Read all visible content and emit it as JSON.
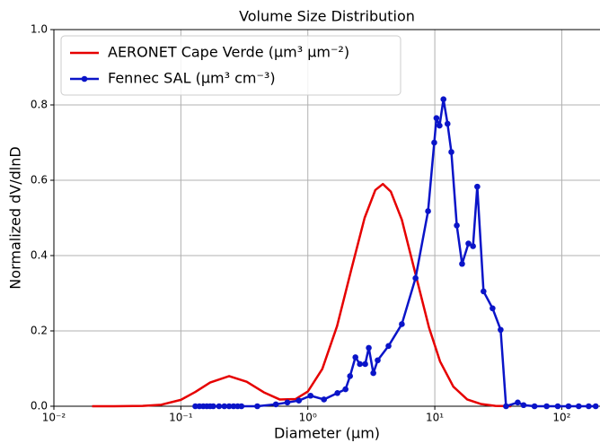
{
  "chart_data": {
    "type": "line",
    "title": "Volume Size Distribution",
    "x_label": "Diameter (µm)",
    "y_label": "Normalized dV/dlnD",
    "x_scale": "log",
    "grid": true,
    "legend_position": "upper left",
    "xlim": [
      0.01,
      200
    ],
    "ylim": [
      0,
      1.0
    ],
    "xticks": [
      {
        "value": 0.01,
        "label": "10⁻²"
      },
      {
        "value": 0.1,
        "label": "10⁻¹"
      },
      {
        "value": 1,
        "label": "10⁰"
      },
      {
        "value": 10,
        "label": "10¹"
      },
      {
        "value": 100,
        "label": "10²"
      }
    ],
    "yticks": [
      {
        "value": 0,
        "label": "0.0"
      },
      0.2,
      0.4,
      0.6,
      0.8,
      {
        "value": 1,
        "label": "1.0"
      }
    ],
    "series": [
      {
        "name": "AERONET Cape Verde (μm³ μm⁻²)",
        "color": "#e60000",
        "marker": false,
        "x": [
          0.02,
          0.03,
          0.05,
          0.07,
          0.1,
          0.13,
          0.17,
          0.24,
          0.33,
          0.45,
          0.6,
          0.8,
          1,
          1.3,
          1.7,
          2.2,
          2.8,
          3.4,
          3.9,
          4.5,
          5.5,
          7,
          9,
          11,
          14,
          18,
          23,
          30,
          40
        ],
        "values": [
          0,
          0,
          0.001,
          0.004,
          0.017,
          0.038,
          0.063,
          0.08,
          0.065,
          0.037,
          0.018,
          0.019,
          0.039,
          0.099,
          0.213,
          0.363,
          0.5,
          0.574,
          0.59,
          0.57,
          0.495,
          0.355,
          0.209,
          0.119,
          0.052,
          0.018,
          0.006,
          0.001,
          0
        ]
      },
      {
        "name": "Fennec SAL (μm³ cm⁻³)",
        "color": "#0a14c8",
        "marker": true,
        "x": [
          0.13,
          0.14,
          0.15,
          0.16,
          0.17,
          0.18,
          0.2,
          0.22,
          0.24,
          0.26,
          0.28,
          0.3,
          0.4,
          0.56,
          0.69,
          0.85,
          1.05,
          1.34,
          1.71,
          1.98,
          2.15,
          2.37,
          2.57,
          2.83,
          3.02,
          3.28,
          3.55,
          4.32,
          5.5,
          7.05,
          8.85,
          9.9,
          10.3,
          10.9,
          11.7,
          12.6,
          13.5,
          14.9,
          16.4,
          18.4,
          20,
          21.6,
          24.2,
          28.5,
          33,
          36.4,
          45,
          50,
          61,
          76,
          93,
          113,
          136,
          163,
          185
        ],
        "values": [
          0,
          0,
          0,
          0,
          0,
          0,
          0,
          0,
          0,
          0,
          0,
          0,
          0,
          0.005,
          0.01,
          0.015,
          0.028,
          0.018,
          0.035,
          0.045,
          0.08,
          0.13,
          0.112,
          0.112,
          0.155,
          0.088,
          0.122,
          0.16,
          0.218,
          0.34,
          0.518,
          0.7,
          0.765,
          0.745,
          0.815,
          0.75,
          0.675,
          0.48,
          0.378,
          0.432,
          0.425,
          0.583,
          0.305,
          0.26,
          0.203,
          0,
          0.01,
          0.003,
          0,
          0,
          0,
          0,
          0,
          0,
          0
        ]
      }
    ]
  }
}
